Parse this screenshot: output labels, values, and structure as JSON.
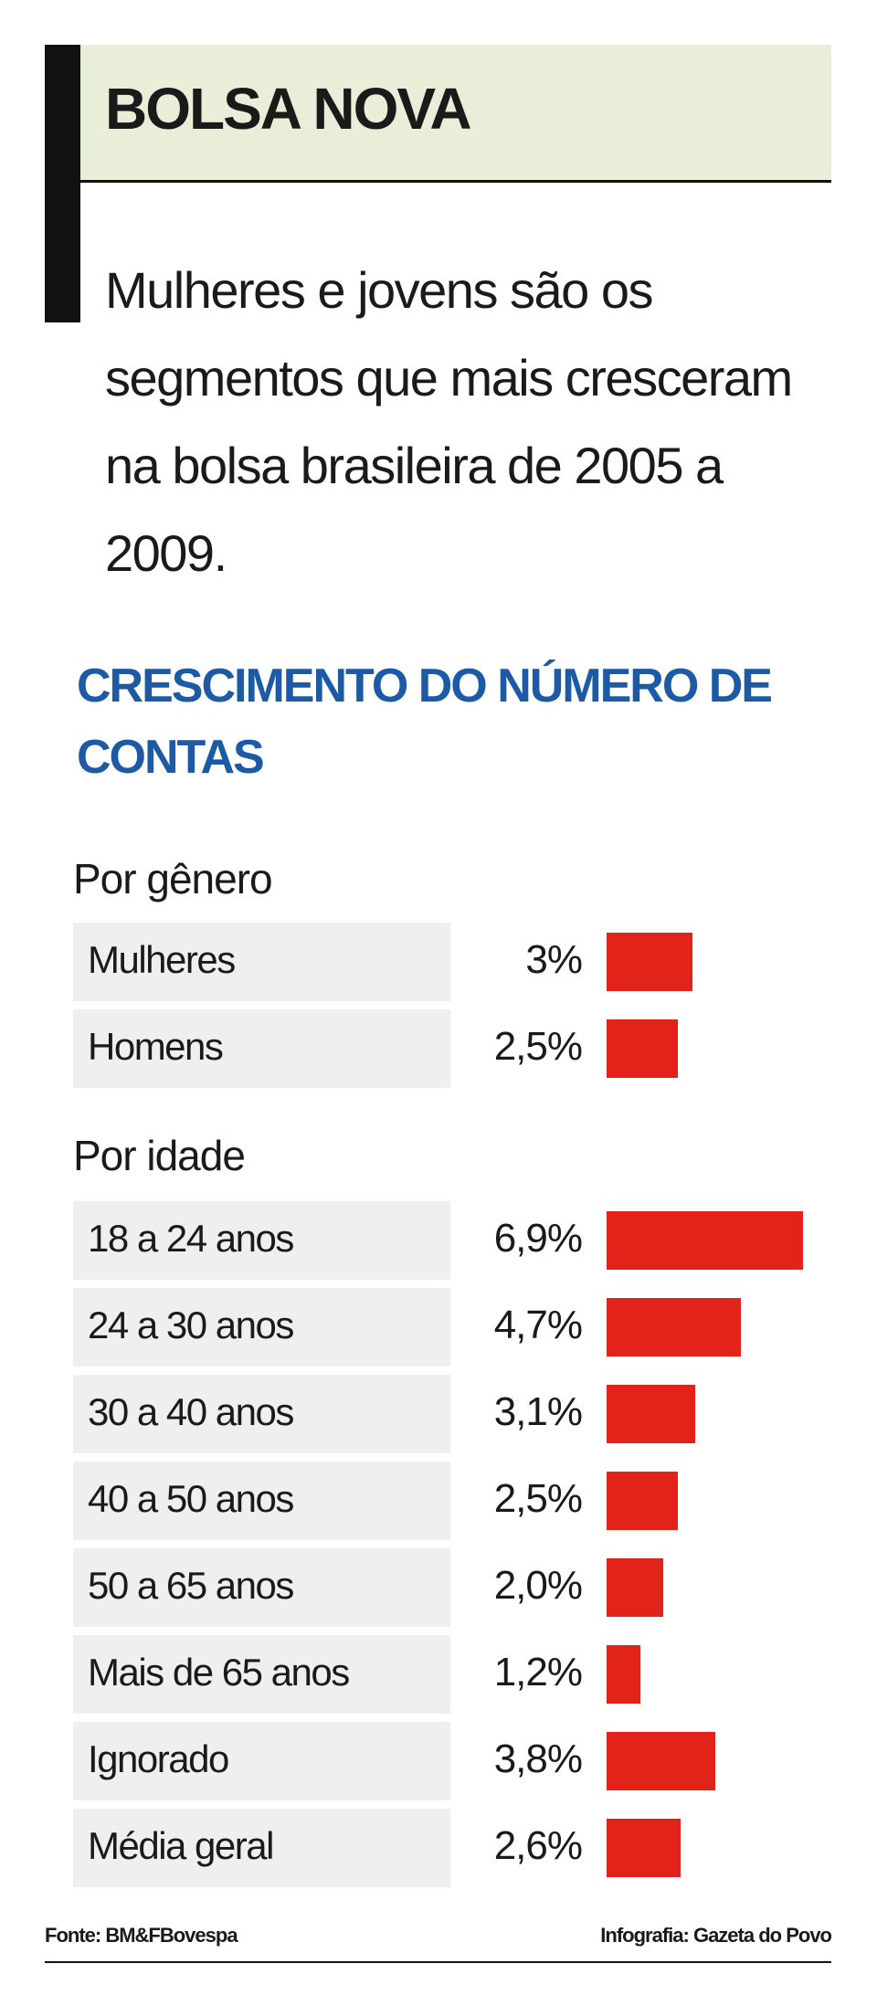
{
  "header": {
    "title": "BOLSA NOVA",
    "subtitle": "Mulheres e jovens são os segmentos que mais cresceram na bolsa brasileira de 2005 a 2009."
  },
  "chart_heading": "CRESCIMENTO DO NÚMERO DE CONTAS",
  "chart_data": [
    {
      "type": "bar",
      "orientation": "horizontal",
      "title": "Por gênero",
      "color": "#e2231a",
      "categories": [
        "Mulheres",
        "Homens"
      ],
      "values": [
        3,
        2.5
      ],
      "value_labels": [
        "3%",
        "2,5%"
      ]
    },
    {
      "type": "bar",
      "orientation": "horizontal",
      "title": "Por idade",
      "color": "#e2231a",
      "categories": [
        "18 a 24 anos",
        "24 a 30 anos",
        "30 a 40 anos",
        "40 a 50 anos",
        "50 a 65 anos",
        "Mais de 65 anos",
        "Ignorado",
        "Média geral"
      ],
      "values": [
        6.9,
        4.7,
        3.1,
        2.5,
        2.0,
        1.2,
        3.8,
        2.6
      ],
      "value_labels": [
        "6,9%",
        "4,7%",
        "3,1%",
        "2,5%",
        "2,0%",
        "1,2%",
        "3,8%",
        "2,6%"
      ]
    }
  ],
  "footer": {
    "source": "Fonte: BM&FBovespa",
    "credit": "Infografia: Gazeta do Povo"
  }
}
